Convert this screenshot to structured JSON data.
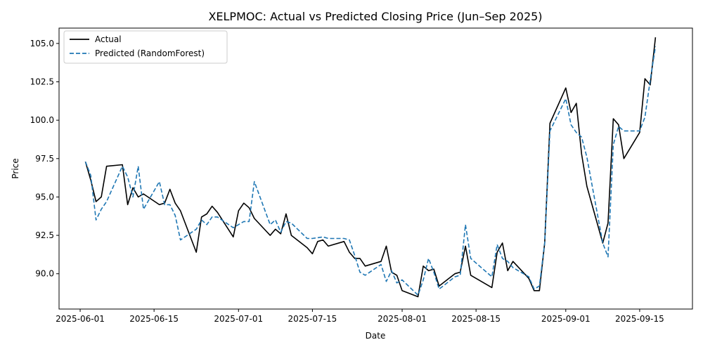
{
  "chart_data": {
    "type": "line",
    "title": "XELPMOC: Actual vs Predicted Closing Price (Jun–Sep 2025)",
    "xlabel": "Date",
    "ylabel": "Price",
    "x_ticks": [
      "2025-06-01",
      "2025-06-15",
      "2025-07-01",
      "2025-07-15",
      "2025-08-01",
      "2025-08-15",
      "2025-09-01",
      "2025-09-15"
    ],
    "y_ticks": [
      "90.0",
      "92.5",
      "95.0",
      "97.5",
      "100.0",
      "102.5",
      "105.0"
    ],
    "xlim": [
      "2025-05-28",
      "2025-09-25"
    ],
    "ylim": [
      87.7,
      106.0
    ],
    "grid": false,
    "legend_position": "top-left",
    "series": [
      {
        "name": "Actual",
        "color": "#000000",
        "style": "solid",
        "points": [
          [
            "2025-06-02",
            97.3
          ],
          [
            "2025-06-03",
            96.1
          ],
          [
            "2025-06-04",
            94.7
          ],
          [
            "2025-06-05",
            95.0
          ],
          [
            "2025-06-06",
            97.0
          ],
          [
            "2025-06-09",
            97.1
          ],
          [
            "2025-06-10",
            94.5
          ],
          [
            "2025-06-11",
            95.6
          ],
          [
            "2025-06-12",
            95.0
          ],
          [
            "2025-06-13",
            95.2
          ],
          [
            "2025-06-16",
            94.5
          ],
          [
            "2025-06-17",
            94.6
          ],
          [
            "2025-06-18",
            95.5
          ],
          [
            "2025-06-19",
            94.6
          ],
          [
            "2025-06-20",
            94.1
          ],
          [
            "2025-06-23",
            91.4
          ],
          [
            "2025-06-24",
            93.7
          ],
          [
            "2025-06-25",
            93.9
          ],
          [
            "2025-06-26",
            94.4
          ],
          [
            "2025-06-27",
            94.0
          ],
          [
            "2025-06-30",
            92.4
          ],
          [
            "2025-07-01",
            94.1
          ],
          [
            "2025-07-02",
            94.6
          ],
          [
            "2025-07-03",
            94.3
          ],
          [
            "2025-07-04",
            93.6
          ],
          [
            "2025-07-07",
            92.5
          ],
          [
            "2025-07-08",
            92.9
          ],
          [
            "2025-07-09",
            92.6
          ],
          [
            "2025-07-10",
            93.9
          ],
          [
            "2025-07-11",
            92.5
          ],
          [
            "2025-07-14",
            91.7
          ],
          [
            "2025-07-15",
            91.3
          ],
          [
            "2025-07-16",
            92.1
          ],
          [
            "2025-07-17",
            92.2
          ],
          [
            "2025-07-18",
            91.8
          ],
          [
            "2025-07-21",
            92.1
          ],
          [
            "2025-07-22",
            91.4
          ],
          [
            "2025-07-23",
            91.0
          ],
          [
            "2025-07-24",
            91.0
          ],
          [
            "2025-07-25",
            90.5
          ],
          [
            "2025-07-28",
            90.8
          ],
          [
            "2025-07-29",
            91.8
          ],
          [
            "2025-07-30",
            90.1
          ],
          [
            "2025-07-31",
            89.9
          ],
          [
            "2025-08-01",
            88.9
          ],
          [
            "2025-08-04",
            88.5
          ],
          [
            "2025-08-05",
            90.5
          ],
          [
            "2025-08-06",
            90.2
          ],
          [
            "2025-08-07",
            90.3
          ],
          [
            "2025-08-08",
            89.2
          ],
          [
            "2025-08-11",
            90.0
          ],
          [
            "2025-08-12",
            90.1
          ],
          [
            "2025-08-13",
            91.8
          ],
          [
            "2025-08-14",
            89.9
          ],
          [
            "2025-08-18",
            89.1
          ],
          [
            "2025-08-19",
            91.4
          ],
          [
            "2025-08-20",
            92.0
          ],
          [
            "2025-08-21",
            90.2
          ],
          [
            "2025-08-22",
            90.8
          ],
          [
            "2025-08-25",
            89.7
          ],
          [
            "2025-08-26",
            88.9
          ],
          [
            "2025-08-27",
            88.9
          ],
          [
            "2025-08-28",
            92.0
          ],
          [
            "2025-08-29",
            99.8
          ],
          [
            "2025-09-01",
            102.1
          ],
          [
            "2025-09-02",
            100.5
          ],
          [
            "2025-09-03",
            101.1
          ],
          [
            "2025-09-04",
            97.8
          ],
          [
            "2025-09-05",
            95.7
          ],
          [
            "2025-09-08",
            92.0
          ],
          [
            "2025-09-09",
            93.3
          ],
          [
            "2025-09-10",
            100.1
          ],
          [
            "2025-09-11",
            99.7
          ],
          [
            "2025-09-12",
            97.5
          ],
          [
            "2025-09-15",
            99.2
          ],
          [
            "2025-09-16",
            102.7
          ],
          [
            "2025-09-17",
            102.3
          ],
          [
            "2025-09-18",
            105.4
          ]
        ]
      },
      {
        "name": "Predicted (RandomForest)",
        "color": "#1f77b4",
        "style": "dashed",
        "points": [
          [
            "2025-06-02",
            97.3
          ],
          [
            "2025-06-03",
            96.4
          ],
          [
            "2025-06-04",
            93.5
          ],
          [
            "2025-06-05",
            94.2
          ],
          [
            "2025-06-06",
            94.7
          ],
          [
            "2025-06-09",
            97.0
          ],
          [
            "2025-06-10",
            96.3
          ],
          [
            "2025-06-11",
            95.0
          ],
          [
            "2025-06-12",
            97.0
          ],
          [
            "2025-06-13",
            94.2
          ],
          [
            "2025-06-16",
            96.0
          ],
          [
            "2025-06-17",
            94.5
          ],
          [
            "2025-06-18",
            94.5
          ],
          [
            "2025-06-19",
            93.8
          ],
          [
            "2025-06-20",
            92.2
          ],
          [
            "2025-06-23",
            92.9
          ],
          [
            "2025-06-24",
            93.5
          ],
          [
            "2025-06-25",
            93.2
          ],
          [
            "2025-06-26",
            93.7
          ],
          [
            "2025-06-27",
            93.7
          ],
          [
            "2025-06-30",
            93.0
          ],
          [
            "2025-07-01",
            93.2
          ],
          [
            "2025-07-02",
            93.4
          ],
          [
            "2025-07-03",
            93.4
          ],
          [
            "2025-07-04",
            96.0
          ],
          [
            "2025-07-07",
            93.2
          ],
          [
            "2025-07-08",
            93.5
          ],
          [
            "2025-07-09",
            92.7
          ],
          [
            "2025-07-10",
            93.4
          ],
          [
            "2025-07-11",
            93.3
          ],
          [
            "2025-07-14",
            92.3
          ],
          [
            "2025-07-15",
            92.3
          ],
          [
            "2025-07-17",
            92.4
          ],
          [
            "2025-07-18",
            92.3
          ],
          [
            "2025-07-21",
            92.3
          ],
          [
            "2025-07-22",
            92.2
          ],
          [
            "2025-07-23",
            91.2
          ],
          [
            "2025-07-24",
            90.1
          ],
          [
            "2025-07-25",
            89.9
          ],
          [
            "2025-07-28",
            90.6
          ],
          [
            "2025-07-29",
            89.5
          ],
          [
            "2025-07-30",
            90.2
          ],
          [
            "2025-07-31",
            89.4
          ],
          [
            "2025-08-01",
            89.6
          ],
          [
            "2025-08-04",
            88.6
          ],
          [
            "2025-08-05",
            89.6
          ],
          [
            "2025-08-06",
            91.0
          ],
          [
            "2025-08-07",
            90.1
          ],
          [
            "2025-08-08",
            89.0
          ],
          [
            "2025-08-11",
            89.8
          ],
          [
            "2025-08-12",
            89.9
          ],
          [
            "2025-08-13",
            93.2
          ],
          [
            "2025-08-14",
            91.0
          ],
          [
            "2025-08-18",
            89.8
          ],
          [
            "2025-08-19",
            91.9
          ],
          [
            "2025-08-20",
            91.0
          ],
          [
            "2025-08-21",
            90.8
          ],
          [
            "2025-08-22",
            90.4
          ],
          [
            "2025-08-25",
            89.8
          ],
          [
            "2025-08-26",
            89.0
          ],
          [
            "2025-08-27",
            89.2
          ],
          [
            "2025-08-28",
            92.0
          ],
          [
            "2025-08-29",
            99.3
          ],
          [
            "2025-09-01",
            101.4
          ],
          [
            "2025-09-02",
            99.7
          ],
          [
            "2025-09-03",
            99.2
          ],
          [
            "2025-09-04",
            98.9
          ],
          [
            "2025-09-05",
            97.6
          ],
          [
            "2025-09-08",
            92.0
          ],
          [
            "2025-09-09",
            91.1
          ],
          [
            "2025-09-10",
            98.4
          ],
          [
            "2025-09-11",
            99.6
          ],
          [
            "2025-09-12",
            99.3
          ],
          [
            "2025-09-15",
            99.3
          ],
          [
            "2025-09-16",
            100.2
          ],
          [
            "2025-09-17",
            102.6
          ],
          [
            "2025-09-18",
            104.8
          ]
        ]
      }
    ]
  }
}
